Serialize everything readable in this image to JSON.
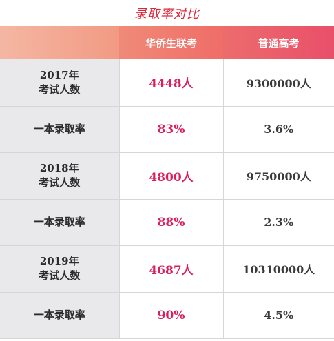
{
  "title": "录取率对比",
  "columns": [
    "",
    "华侨生联考",
    "普通高考"
  ],
  "rows": [
    {
      "label_line1": "2017年",
      "label_line2": "考试人数",
      "huaqiao": "4448人",
      "gaokao": "9300000人"
    },
    {
      "label_line1": "一本录取率",
      "label_line2": "",
      "huaqiao": "83%",
      "gaokao": "3.6%"
    },
    {
      "label_line1": "2018年",
      "label_line2": "考试人数",
      "huaqiao": "4800人",
      "gaokao": "9750000人"
    },
    {
      "label_line1": "一本录取率",
      "label_line2": "",
      "huaqiao": "88%",
      "gaokao": "2.3%"
    },
    {
      "label_line1": "2019年",
      "label_line2": "考试人数",
      "huaqiao": "4687人",
      "gaokao": "10310000人"
    },
    {
      "label_line1": "一本录取率",
      "label_line2": "",
      "huaqiao": "90%",
      "gaokao": "4.5%"
    }
  ],
  "colors": {
    "title": "#e2263a",
    "highlight_value": "#d81f5c",
    "label_background": "#e9e9ec"
  }
}
